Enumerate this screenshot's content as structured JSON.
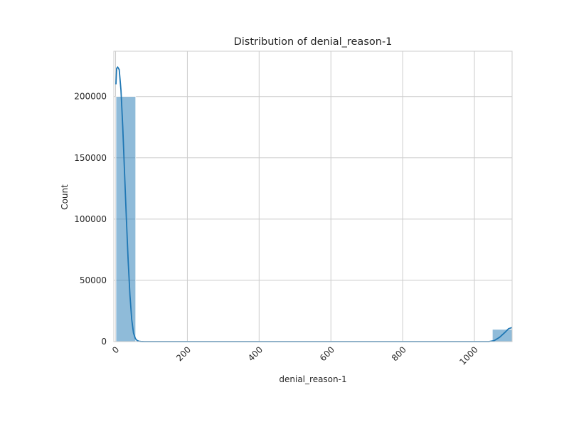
{
  "chart_data": {
    "type": "bar",
    "title": "Distribution of denial_reason-1",
    "xlabel": "denial_reason-1",
    "ylabel": "Count",
    "xlim": [
      -5,
      1105
    ],
    "ylim": [
      0,
      237000
    ],
    "x_ticks": [
      0,
      200,
      400,
      600,
      800,
      1000
    ],
    "x_tick_labels": [
      "0",
      "200",
      "400",
      "600",
      "800",
      "1000"
    ],
    "x_tick_rotation": 45,
    "y_ticks": [
      0,
      50000,
      100000,
      150000,
      200000
    ],
    "y_tick_labels": [
      "0",
      "50000",
      "100000",
      "150000",
      "200000"
    ],
    "grid": true,
    "bins": [
      {
        "x0": 1,
        "x1": 56,
        "count": 200000
      },
      {
        "x0": 1050,
        "x1": 1105,
        "count": 10000
      }
    ],
    "kde": {
      "x": [
        1,
        3,
        6,
        10,
        15,
        20,
        25,
        30,
        35,
        40,
        45,
        50,
        55,
        60,
        65,
        70,
        80,
        100,
        200,
        400,
        600,
        800,
        1000,
        1040,
        1055,
        1070,
        1085,
        1095,
        1105
      ],
      "y": [
        210000,
        223000,
        224000,
        222000,
        205000,
        175000,
        138000,
        100000,
        66000,
        38000,
        18000,
        7000,
        2500,
        900,
        300,
        100,
        0,
        0,
        0,
        0,
        0,
        0,
        0,
        0,
        800,
        3500,
        7500,
        10500,
        11500
      ]
    },
    "colors": {
      "bar": "#1f77b4",
      "line": "#1f77b4",
      "grid": "#cccccc"
    }
  }
}
